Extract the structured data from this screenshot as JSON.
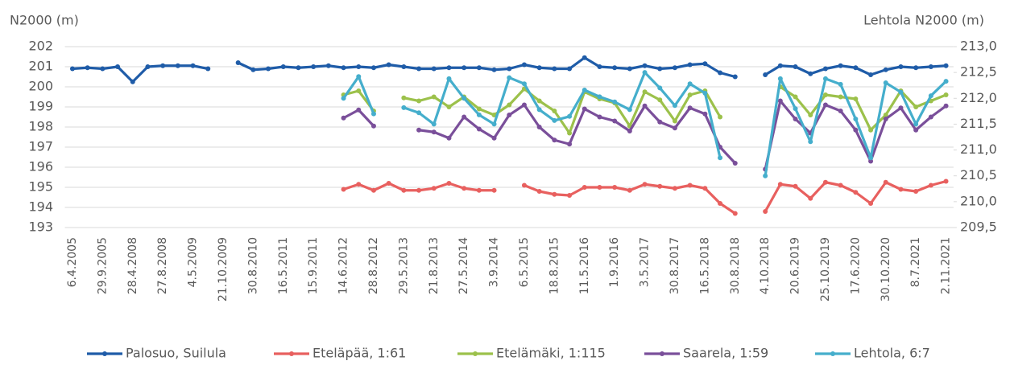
{
  "chart_data": {
    "type": "line",
    "y_label": "N2000 (m)",
    "y2_label": "Lehtola N2000 (m)",
    "categories": [
      "6.4.2005",
      null,
      "29.9.2005",
      null,
      "28.4.2008",
      null,
      "27.8.2008",
      null,
      "4.5.2009",
      null,
      "21.10.2009",
      null,
      "30.8.2010",
      null,
      "16.5.2011",
      null,
      "15.9.2011",
      null,
      "14.6.2012",
      null,
      "28.8.2012",
      null,
      "29.5.2013",
      null,
      "21.8.2013",
      null,
      "27.5.2014",
      null,
      "3.9.2014",
      null,
      "6.5.2015",
      null,
      "18.8.2015",
      null,
      "11.5.2016",
      null,
      "1.9.2016",
      null,
      "3.5.2017",
      null,
      "30.8.2017",
      null,
      "16.5.2018",
      null,
      "30.8.2018",
      null,
      "4.10.2018",
      null,
      "20.6.2019",
      null,
      "25.10.2019",
      null,
      "17.6.2020",
      null,
      "30.10.2020",
      null,
      "8.7.2021",
      null,
      "2.11.2021"
    ],
    "ylim": [
      193,
      202
    ],
    "yticks": [
      193,
      194,
      195,
      196,
      197,
      198,
      199,
      200,
      201,
      202
    ],
    "y2lim": [
      209.5,
      213
    ],
    "y2ticks": [
      {
        "value": 209.5,
        "label": "209,5"
      },
      {
        "value": 210,
        "label": "210,0"
      },
      {
        "value": 210.5,
        "label": "210,5"
      },
      {
        "value": 211,
        "label": "211,0"
      },
      {
        "value": 211.5,
        "label": "211,5"
      },
      {
        "value": 212,
        "label": "212,0"
      },
      {
        "value": 212.5,
        "label": "212,5"
      },
      {
        "value": 213,
        "label": "213,0"
      }
    ],
    "grid": true,
    "legend": "bottom",
    "series": [
      {
        "name": "Palosuo, Suilula",
        "color": "#1f5ca8",
        "values": [
          200.9,
          200.95,
          200.9,
          201.0,
          200.25,
          201.0,
          201.05,
          201.05,
          201.05,
          200.9,
          null,
          201.2,
          200.85,
          200.9,
          201.0,
          200.95,
          201.0,
          201.05,
          200.95,
          201.0,
          200.95,
          201.1,
          201.0,
          200.9,
          200.9,
          200.95,
          200.95,
          200.95,
          200.85,
          200.9,
          201.1,
          200.95,
          200.9,
          200.9,
          201.45,
          201.0,
          200.95,
          200.9,
          201.05,
          200.9,
          200.95,
          201.1,
          201.15,
          200.7,
          200.5,
          null,
          200.6,
          201.05,
          201.0,
          200.65,
          200.9,
          201.05,
          200.95,
          200.6,
          200.85,
          201.0,
          200.95,
          201.0,
          201.05
        ]
      },
      {
        "name": "Eteläpää, 1:61",
        "color": "#e8605f",
        "values": [
          null,
          null,
          null,
          null,
          null,
          null,
          null,
          null,
          null,
          null,
          null,
          null,
          null,
          null,
          null,
          null,
          null,
          null,
          194.9,
          195.15,
          194.85,
          195.2,
          194.85,
          194.85,
          194.95,
          195.2,
          194.95,
          194.85,
          194.85,
          null,
          195.1,
          194.8,
          194.65,
          194.6,
          195.0,
          195.0,
          195.0,
          194.85,
          195.15,
          195.05,
          194.95,
          195.1,
          194.95,
          194.2,
          193.7,
          null,
          193.8,
          195.15,
          195.05,
          194.45,
          195.25,
          195.1,
          194.75,
          194.2,
          195.25,
          194.9,
          194.8,
          195.1,
          195.3
        ]
      },
      {
        "name": "Etelämäki, 1:115",
        "color": "#9cc14b",
        "values": [
          null,
          null,
          null,
          null,
          null,
          null,
          null,
          null,
          null,
          null,
          null,
          null,
          null,
          null,
          null,
          null,
          null,
          null,
          199.6,
          199.8,
          198.8,
          null,
          199.45,
          199.3,
          199.5,
          199.0,
          199.5,
          198.9,
          198.6,
          199.1,
          199.9,
          199.3,
          198.8,
          197.7,
          199.75,
          199.4,
          199.2,
          198.05,
          199.75,
          199.35,
          198.3,
          199.6,
          199.8,
          198.5,
          null,
          null,
          null,
          200.0,
          199.5,
          198.6,
          199.6,
          199.5,
          199.4,
          197.85,
          198.6,
          199.8,
          199.0,
          199.3,
          199.6
        ]
      },
      {
        "name": "Saarela, 1:59",
        "color": "#7a4f9a",
        "values": [
          null,
          null,
          null,
          null,
          null,
          null,
          null,
          null,
          null,
          null,
          null,
          null,
          null,
          null,
          null,
          null,
          null,
          null,
          198.45,
          198.85,
          198.05,
          null,
          null,
          197.85,
          197.75,
          197.45,
          198.5,
          197.9,
          197.45,
          198.6,
          199.1,
          198.0,
          197.35,
          197.15,
          198.9,
          198.5,
          198.3,
          197.8,
          199.05,
          198.25,
          197.95,
          198.95,
          198.65,
          197.0,
          196.2,
          null,
          195.9,
          199.3,
          198.4,
          197.7,
          199.1,
          198.8,
          197.85,
          196.3,
          198.4,
          198.95,
          197.85,
          198.5,
          199.05
        ]
      },
      {
        "name": "Lehtola, 6:7",
        "color": "#45aecc",
        "axis": "y2",
        "values": [
          null,
          null,
          null,
          null,
          null,
          null,
          null,
          null,
          null,
          null,
          null,
          null,
          null,
          null,
          null,
          null,
          null,
          null,
          212.0,
          212.42,
          211.7,
          null,
          211.82,
          211.72,
          211.5,
          212.38,
          212.0,
          211.68,
          211.5,
          212.4,
          212.28,
          211.78,
          211.57,
          211.65,
          212.16,
          212.03,
          211.93,
          211.78,
          212.5,
          212.2,
          211.86,
          212.28,
          212.1,
          210.85,
          null,
          null,
          210.5,
          212.38,
          211.8,
          211.16,
          212.38,
          212.27,
          211.6,
          210.85,
          212.3,
          212.12,
          211.5,
          212.05,
          212.33
        ]
      }
    ]
  }
}
